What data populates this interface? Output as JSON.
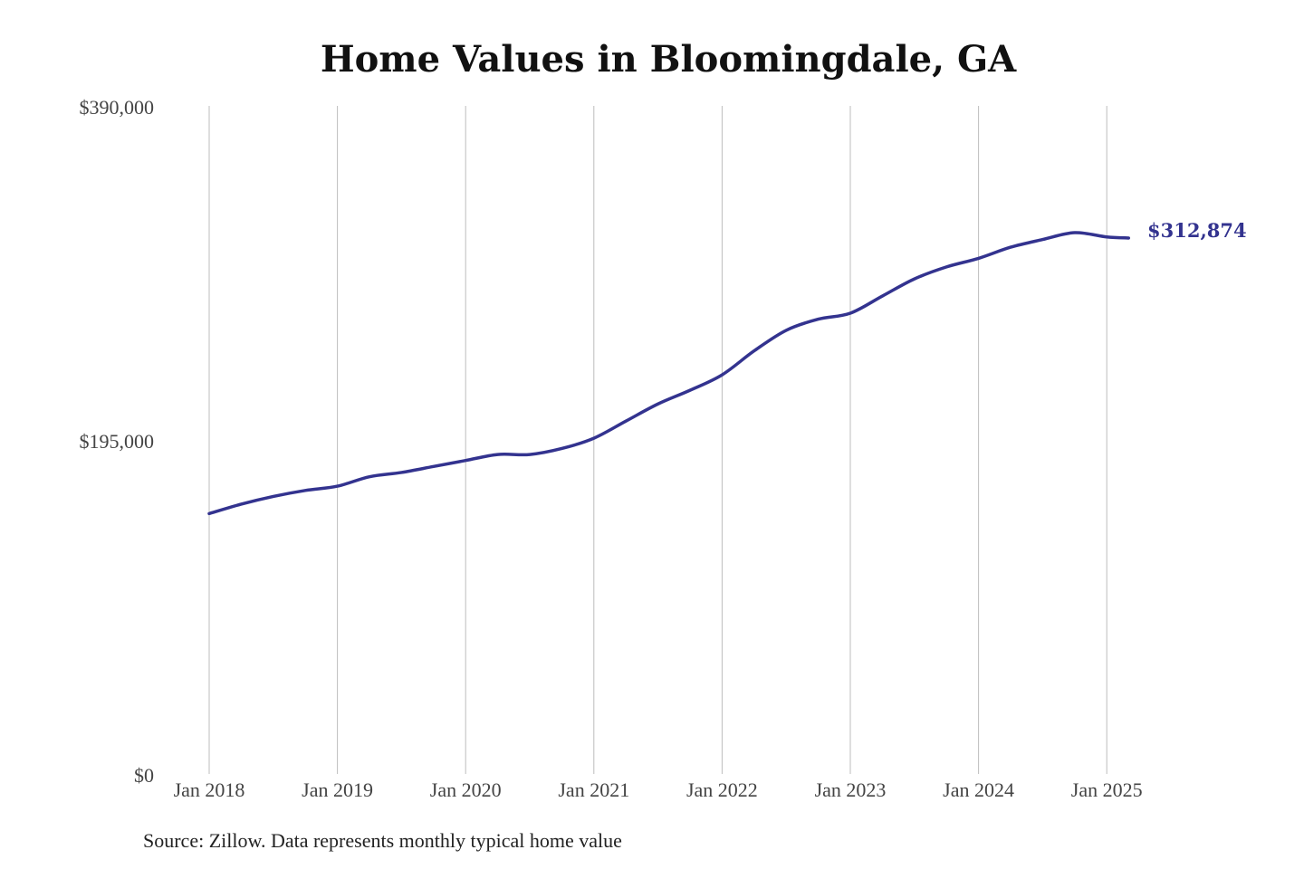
{
  "chart_data": {
    "type": "line",
    "title": "Home Values in Bloomingdale, GA",
    "source": "Source: Zillow. Data represents monthly typical home value",
    "xlabel": "",
    "ylabel": "",
    "ylim": [
      0,
      390000
    ],
    "xlim": [
      2018,
      2025.17
    ],
    "y_ticks": [
      0,
      195000,
      390000
    ],
    "y_tick_labels": [
      "$0",
      "$195,000",
      "$390,000"
    ],
    "x_ticks": [
      2018,
      2019,
      2020,
      2021,
      2022,
      2023,
      2024,
      2025
    ],
    "x_tick_labels": [
      "Jan 2018",
      "Jan 2019",
      "Jan 2020",
      "Jan 2021",
      "Jan 2022",
      "Jan 2023",
      "Jan 2024",
      "Jan 2025"
    ],
    "grid": "vertical",
    "line_color": "#33338f",
    "end_label": "$312,874",
    "series": [
      {
        "name": "Typical home value",
        "x": [
          2018.0,
          2018.25,
          2018.5,
          2018.75,
          2019.0,
          2019.25,
          2019.5,
          2019.75,
          2020.0,
          2020.25,
          2020.5,
          2020.75,
          2021.0,
          2021.25,
          2021.5,
          2021.75,
          2022.0,
          2022.25,
          2022.5,
          2022.75,
          2023.0,
          2023.25,
          2023.5,
          2023.75,
          2024.0,
          2024.25,
          2024.5,
          2024.75,
          2025.0,
          2025.17
        ],
        "values": [
          152000,
          157500,
          162000,
          165500,
          168000,
          173500,
          176000,
          179500,
          183000,
          186500,
          186500,
          190000,
          196000,
          206000,
          216000,
          224000,
          233000,
          247000,
          259000,
          265500,
          269000,
          279000,
          289000,
          296000,
          301000,
          307500,
          312000,
          316000,
          313500,
          312874
        ]
      }
    ]
  }
}
